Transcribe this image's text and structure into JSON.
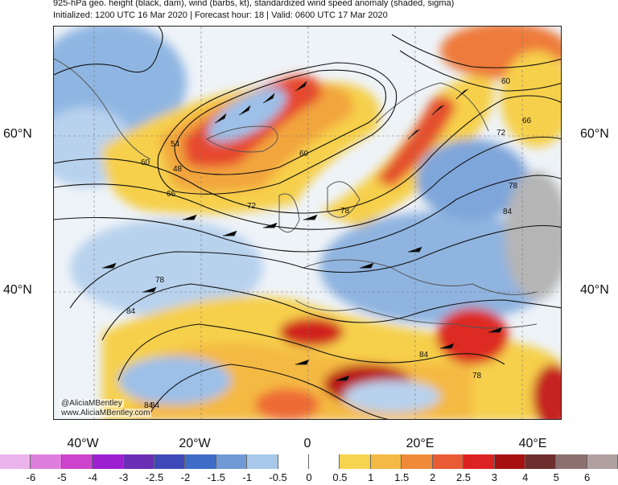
{
  "header": {
    "title": "925-hPa geo. height (black, dam), wind (barbs, kt), standardized wind speed anomaly (shaded, sigma)",
    "subtitle": "Initialized: 1200 UTC 16 Mar 2020 | Forecast hour: 18 | Valid: 0600 UTC 17 Mar 2020"
  },
  "map": {
    "lat_labels": [
      "60°N",
      "40°N"
    ],
    "lon_labels": [
      "40°W",
      "20°W",
      "0",
      "20°E",
      "40°E"
    ],
    "contour_labels": [
      "54",
      "48",
      "60",
      "66",
      "72",
      "78",
      "84",
      "60",
      "66",
      "72",
      "78",
      "84",
      "60",
      "78",
      "84",
      "84",
      "84",
      "78"
    ],
    "credit": [
      "@AliciaMBentley",
      "www.AliciaMBentley.com"
    ]
  },
  "colorbar": {
    "labels": [
      "-6",
      "-5",
      "-4",
      "-3",
      "-2.5",
      "-2",
      "-1.5",
      "-1",
      "-0.5",
      "0",
      "0.5",
      "1",
      "1.5",
      "2",
      "2.5",
      "3",
      "4",
      "5",
      "6"
    ],
    "colors": [
      "#ebb3eb",
      "#de7fde",
      "#cc44cc",
      "#9c1fd0",
      "#6a2fb5",
      "#3f48b8",
      "#3f6cc6",
      "#6f9ad6",
      "#a8c8ea",
      "#ffffff",
      "#ffffff",
      "#f7d44f",
      "#f4b943",
      "#ee8a3a",
      "#e95b35",
      "#dd2222",
      "#a80f0f",
      "#6e2e2e",
      "#8c7070",
      "#b0a0a0"
    ]
  }
}
